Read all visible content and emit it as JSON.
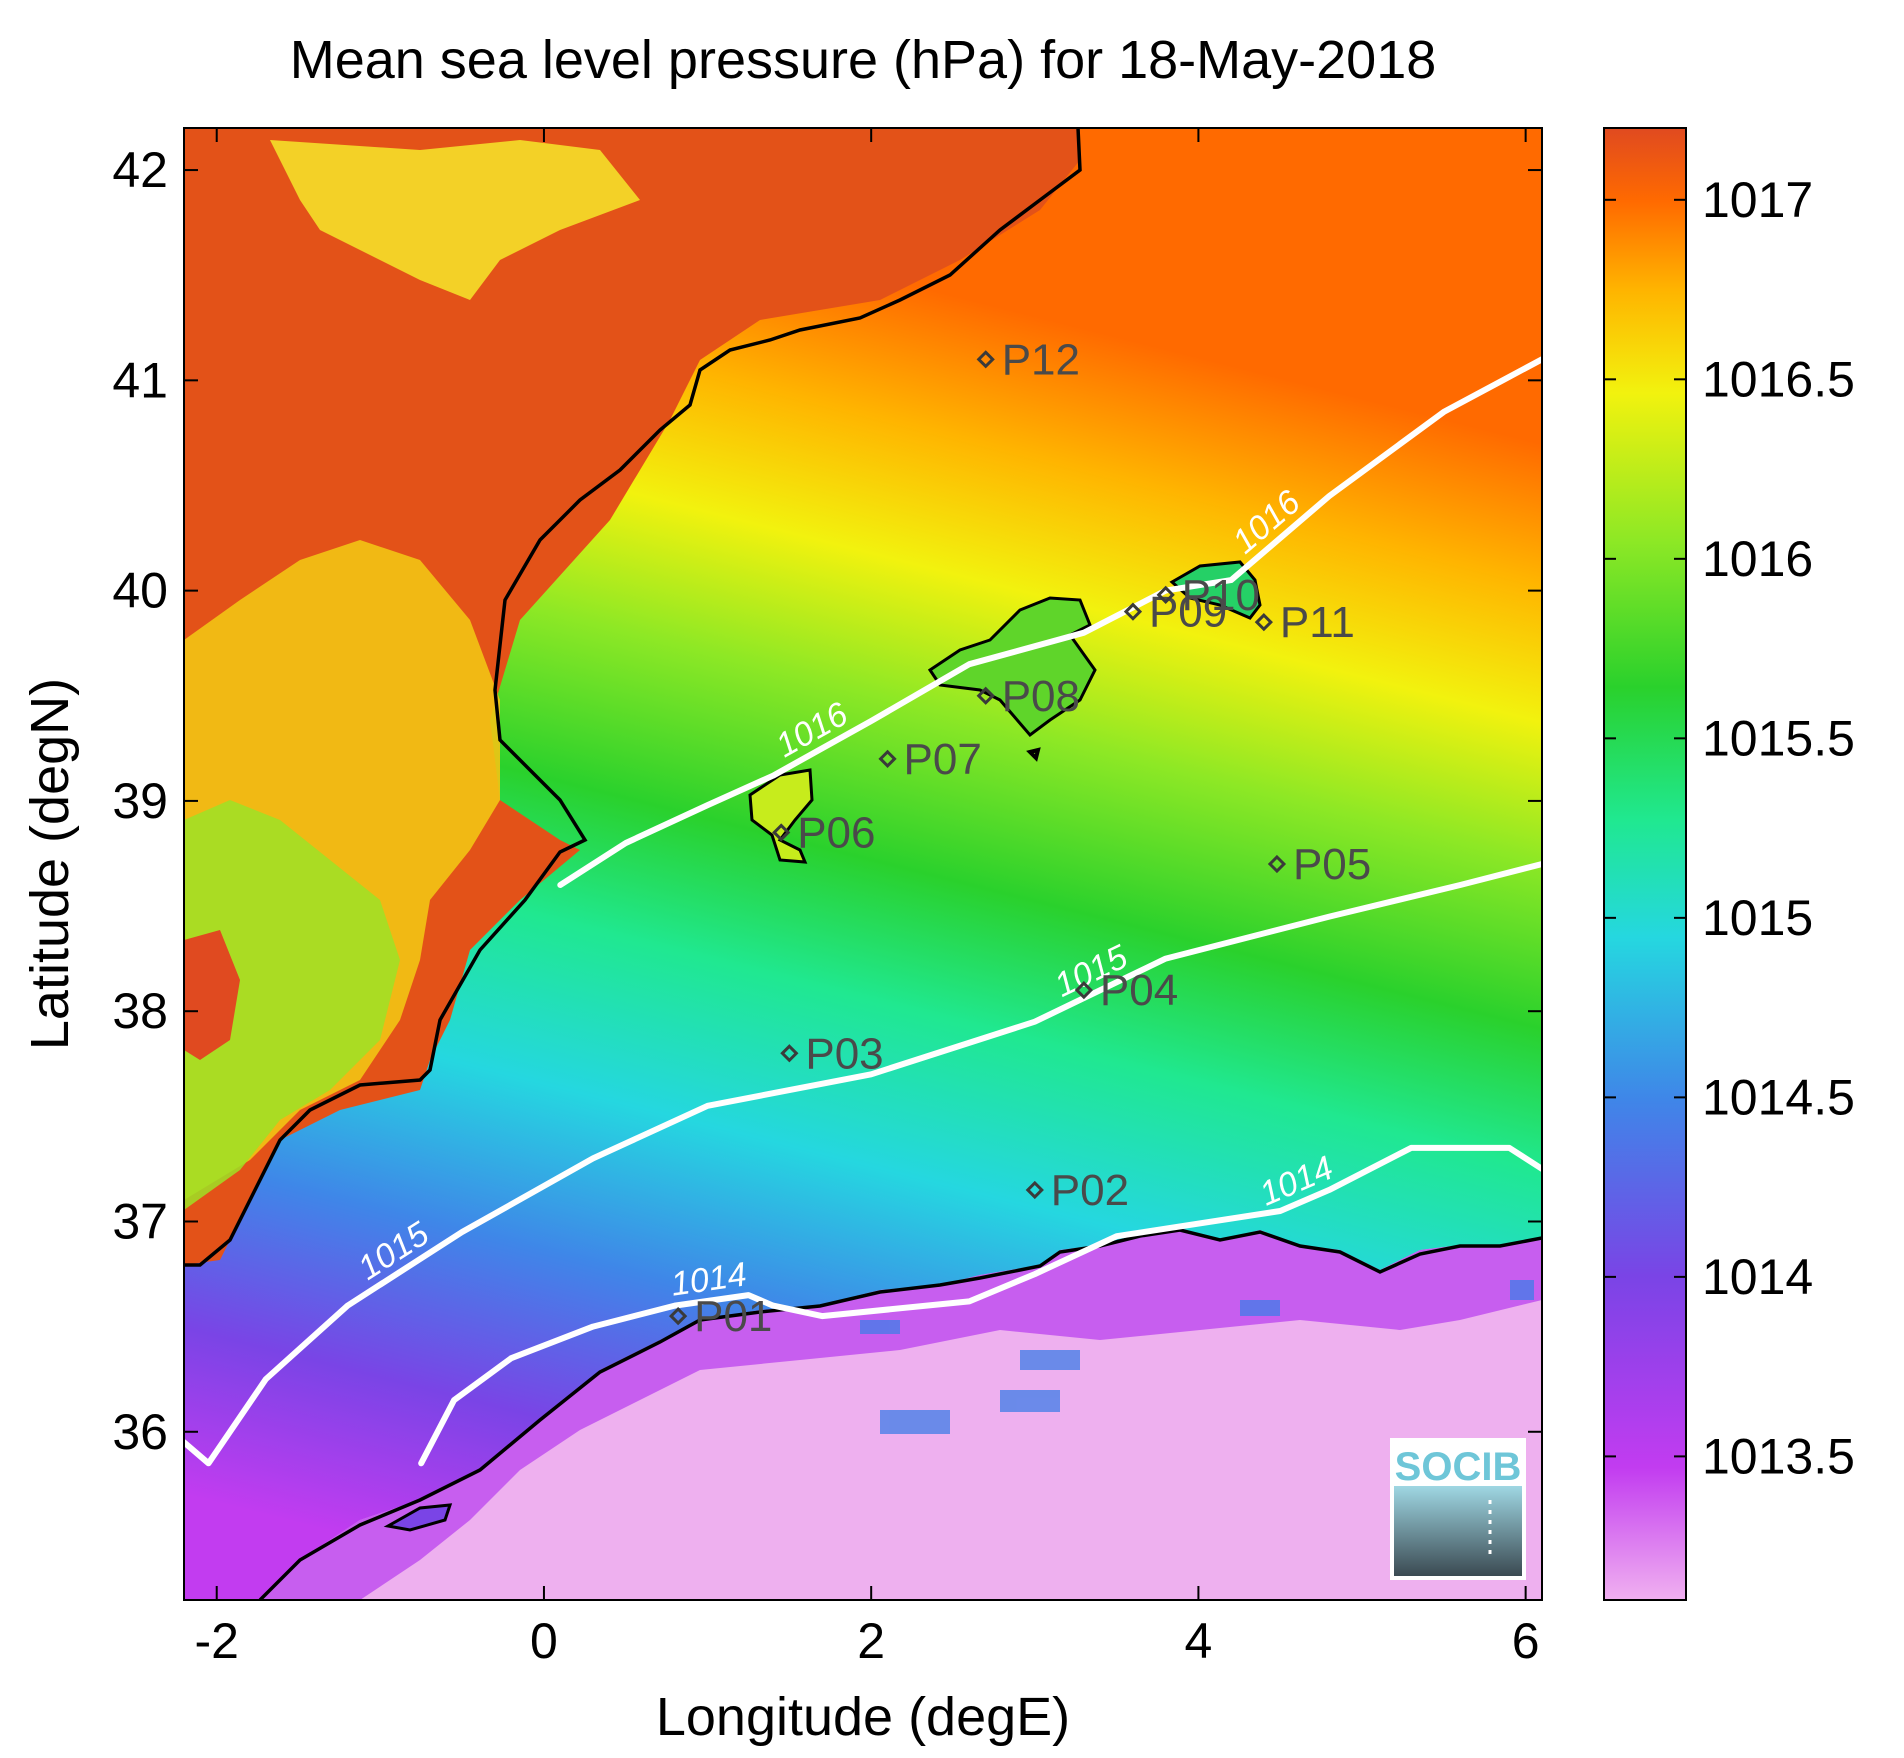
{
  "chart_data": {
    "type": "heatmap",
    "title": "Mean sea level pressure (hPa) for 18-May-2018",
    "xlabel": "Longitude (degE)",
    "ylabel": "Latitude (degN)",
    "xlim": [
      -2.2,
      6.1
    ],
    "ylim": [
      35.2,
      42.2
    ],
    "xticks": [
      -2,
      0,
      2,
      4,
      6
    ],
    "xtick_labels": [
      "-2",
      "0",
      "2",
      "4",
      "6"
    ],
    "yticks": [
      36,
      37,
      38,
      39,
      40,
      41,
      42
    ],
    "ytick_labels": [
      "36",
      "37",
      "38",
      "39",
      "40",
      "41",
      "42"
    ],
    "colorbar": {
      "range": [
        1013.1,
        1017.2
      ],
      "ticks": [
        1013.5,
        1014,
        1014.5,
        1015,
        1015.5,
        1016,
        1016.5,
        1017
      ],
      "tick_labels": [
        "1013.5",
        "1014",
        "1014.5",
        "1015",
        "1015.5",
        "1016",
        "1016.5",
        "1017"
      ],
      "colors": [
        "#f0b0f0",
        "#c23cf0",
        "#7a44e6",
        "#3f86e8",
        "#25d7e0",
        "#20e890",
        "#2ad12c",
        "#8ee825",
        "#f2f20e",
        "#ffb400",
        "#ff6a00",
        "#e04a20"
      ]
    },
    "contours": [
      {
        "level": 1014,
        "label": "1014",
        "color": "#ffffff",
        "points": [
          [
            -0.75,
            35.85
          ],
          [
            -0.55,
            36.15
          ],
          [
            -0.2,
            36.35
          ],
          [
            0.3,
            36.5
          ],
          [
            0.8,
            36.6
          ],
          [
            1.25,
            36.65
          ],
          [
            1.4,
            36.6
          ],
          [
            1.7,
            36.55
          ],
          [
            2.6,
            36.62
          ],
          [
            3.0,
            36.75
          ],
          [
            3.5,
            36.93
          ],
          [
            4.5,
            37.05
          ],
          [
            4.8,
            37.15
          ],
          [
            5.3,
            37.35
          ],
          [
            5.9,
            37.35
          ],
          [
            6.1,
            37.25
          ]
        ]
      },
      {
        "level": 1015,
        "label": "1015",
        "color": "#ffffff",
        "points": [
          [
            -2.2,
            35.95
          ],
          [
            -2.05,
            35.85
          ],
          [
            -1.7,
            36.25
          ],
          [
            -1.2,
            36.6
          ],
          [
            -0.5,
            36.95
          ],
          [
            0.3,
            37.3
          ],
          [
            1.0,
            37.55
          ],
          [
            2.0,
            37.7
          ],
          [
            3.0,
            37.95
          ],
          [
            3.8,
            38.25
          ],
          [
            4.8,
            38.45
          ],
          [
            5.6,
            38.6
          ],
          [
            6.1,
            38.7
          ]
        ]
      },
      {
        "level": 1016,
        "label": "1016",
        "color": "#ffffff",
        "points": [
          [
            0.1,
            38.6
          ],
          [
            0.5,
            38.8
          ],
          [
            1.0,
            38.98
          ],
          [
            1.4,
            39.12
          ],
          [
            2.0,
            39.38
          ],
          [
            2.6,
            39.65
          ],
          [
            3.3,
            39.8
          ],
          [
            3.8,
            40.0
          ],
          [
            4.2,
            40.05
          ],
          [
            4.8,
            40.45
          ],
          [
            5.5,
            40.85
          ],
          [
            6.1,
            41.1
          ]
        ]
      }
    ],
    "stations": [
      {
        "name": "P01",
        "lon": 0.82,
        "lat": 36.55
      },
      {
        "name": "P02",
        "lon": 3.0,
        "lat": 37.15
      },
      {
        "name": "P03",
        "lon": 1.5,
        "lat": 37.8
      },
      {
        "name": "P04",
        "lon": 3.3,
        "lat": 38.1
      },
      {
        "name": "P05",
        "lon": 4.48,
        "lat": 38.7
      },
      {
        "name": "P06",
        "lon": 1.45,
        "lat": 38.85
      },
      {
        "name": "P07",
        "lon": 2.1,
        "lat": 39.2
      },
      {
        "name": "P08",
        "lon": 2.7,
        "lat": 39.5
      },
      {
        "name": "P09",
        "lon": 3.6,
        "lat": 39.9
      },
      {
        "name": "P10",
        "lon": 3.8,
        "lat": 39.98
      },
      {
        "name": "P11",
        "lon": 4.4,
        "lat": 39.85
      },
      {
        "name": "P12",
        "lon": 2.7,
        "lat": 41.1
      }
    ],
    "grid": false,
    "legend": "colorbar-right"
  },
  "logo": {
    "text": "SOCIB",
    "color": "#6ec6d8"
  }
}
